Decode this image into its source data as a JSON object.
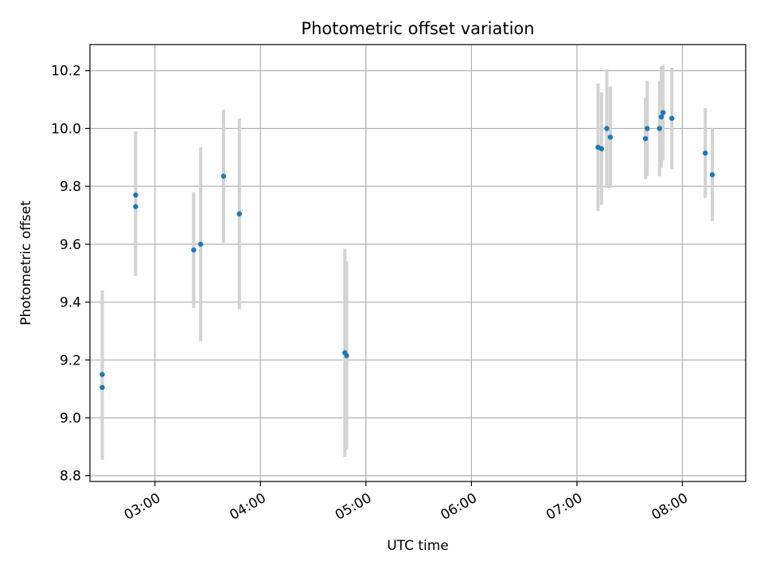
{
  "chart_data": {
    "type": "scatter",
    "title": "Photometric offset variation",
    "xlabel": "UTC time",
    "ylabel": "Photometric offset",
    "xlim": [
      "02:23",
      "08:36"
    ],
    "ylim": [
      8.78,
      10.29
    ],
    "xticks": [
      "03:00",
      "04:00",
      "05:00",
      "06:00",
      "07:00",
      "08:00"
    ],
    "yticks": [
      "8.8",
      "9.0",
      "9.2",
      "9.4",
      "9.6",
      "9.8",
      "10.0",
      "10.2"
    ],
    "grid": true,
    "colors": {
      "points": "#1f77b4",
      "errorbars": "#d3d3d3",
      "grid": "#b0b0b0"
    },
    "points": [
      {
        "x": "02:30:00",
        "y": 9.15,
        "yerr": 0.29
      },
      {
        "x": "02:30:00",
        "y": 9.105,
        "yerr": 0.25
      },
      {
        "x": "02:49:00",
        "y": 9.77,
        "yerr": 0.22
      },
      {
        "x": "02:49:00",
        "y": 9.73,
        "yerr": 0.24
      },
      {
        "x": "03:22:00",
        "y": 9.58,
        "yerr": 0.2
      },
      {
        "x": "03:26:00",
        "y": 9.6,
        "yerr": 0.335
      },
      {
        "x": "03:39:00",
        "y": 9.835,
        "yerr": 0.23
      },
      {
        "x": "03:48:00",
        "y": 9.705,
        "yerr": 0.33
      },
      {
        "x": "04:48:00",
        "y": 9.225,
        "yerr": 0.36
      },
      {
        "x": "04:49:00",
        "y": 9.215,
        "yerr": 0.325
      },
      {
        "x": "07:12:00",
        "y": 9.935,
        "yerr": 0.22
      },
      {
        "x": "07:14:00",
        "y": 9.93,
        "yerr": 0.195
      },
      {
        "x": "07:17:00",
        "y": 10.0,
        "yerr": 0.205
      },
      {
        "x": "07:19:00",
        "y": 9.97,
        "yerr": 0.175
      },
      {
        "x": "07:39:00",
        "y": 9.965,
        "yerr": 0.14
      },
      {
        "x": "07:40:00",
        "y": 10.0,
        "yerr": 0.165
      },
      {
        "x": "07:47:00",
        "y": 10.0,
        "yerr": 0.165
      },
      {
        "x": "07:48:00",
        "y": 10.04,
        "yerr": 0.175
      },
      {
        "x": "07:49:00",
        "y": 10.055,
        "yerr": 0.165
      },
      {
        "x": "07:54:00",
        "y": 10.035,
        "yerr": 0.175
      },
      {
        "x": "08:13:00",
        "y": 9.915,
        "yerr": 0.155
      },
      {
        "x": "08:17:00",
        "y": 9.84,
        "yerr": 0.16
      }
    ]
  }
}
